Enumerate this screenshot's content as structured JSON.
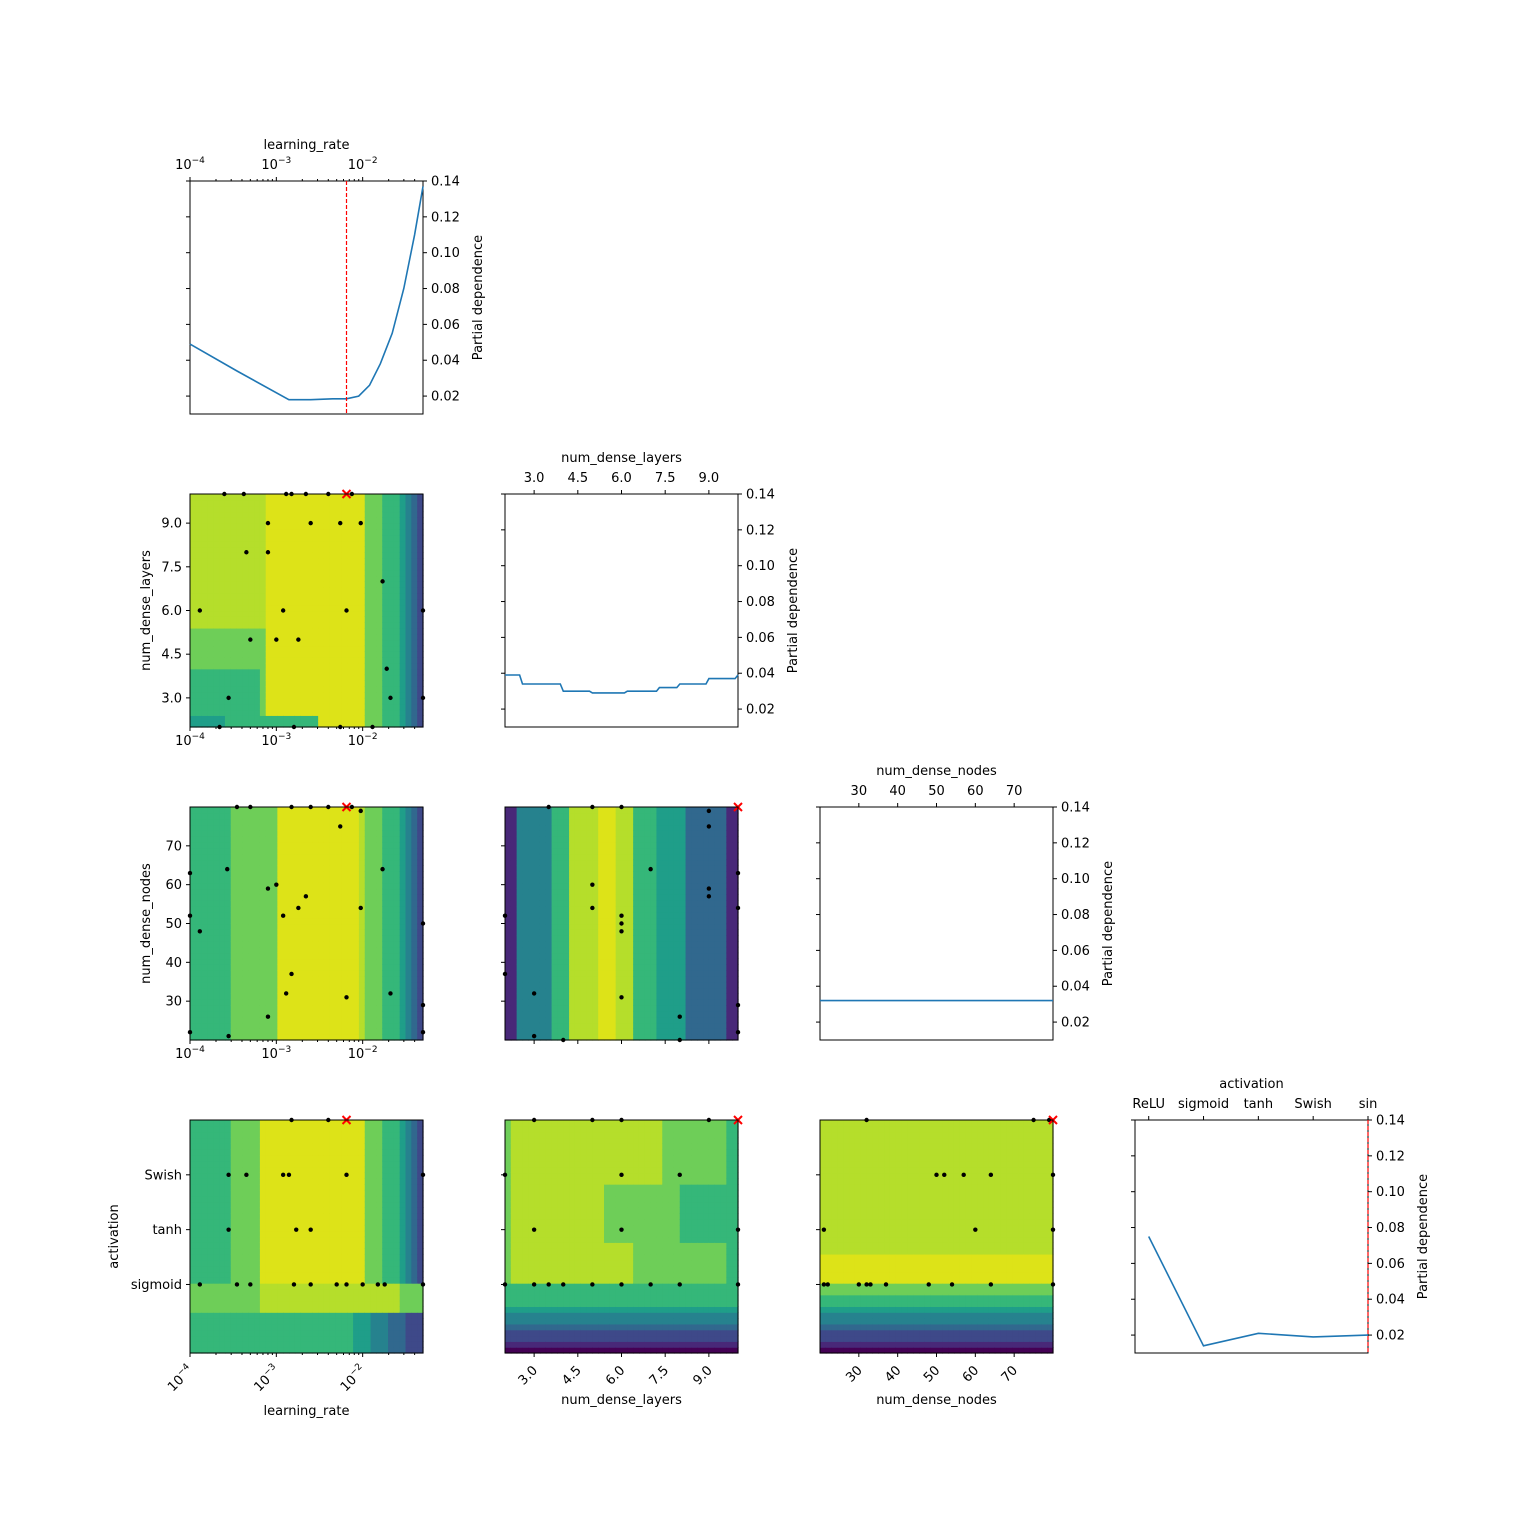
{
  "chart_data": {
    "type": "partial_dependence_matrix",
    "title": "",
    "dimensions": [
      {
        "key": "learning_rate",
        "label": "learning_rate",
        "scale": "log",
        "range": [
          0.0001,
          0.05
        ],
        "ticks": [
          {
            "v": 0.0001,
            "label": "10",
            "exp": "−4"
          },
          {
            "v": 0.001,
            "label": "10",
            "exp": "−3"
          },
          {
            "v": 0.01,
            "label": "10",
            "exp": "−2"
          }
        ]
      },
      {
        "key": "num_dense_layers",
        "label": "num_dense_layers",
        "scale": "linear",
        "range": [
          2,
          10
        ],
        "ticks": [
          {
            "v": 3,
            "label": "3.0"
          },
          {
            "v": 4.5,
            "label": "4.5"
          },
          {
            "v": 6,
            "label": "6.0"
          },
          {
            "v": 7.5,
            "label": "7.5"
          },
          {
            "v": 9,
            "label": "9.0"
          }
        ]
      },
      {
        "key": "num_dense_nodes",
        "label": "num_dense_nodes",
        "scale": "linear",
        "range": [
          20,
          80
        ],
        "ticks": [
          {
            "v": 30,
            "label": "30"
          },
          {
            "v": 40,
            "label": "40"
          },
          {
            "v": 50,
            "label": "50"
          },
          {
            "v": 60,
            "label": "60"
          },
          {
            "v": 70,
            "label": "70"
          }
        ]
      },
      {
        "key": "activation",
        "label": "activation",
        "scale": "categorical",
        "range": [
          -0.5,
          3.75
        ],
        "ticks": [
          {
            "v": -0.25,
            "label": "ReLU"
          },
          {
            "v": 0.75,
            "label": "sigmoid"
          },
          {
            "v": 1.75,
            "label": "tanh"
          },
          {
            "v": 2.75,
            "label": "Swish"
          },
          {
            "v": 3.75,
            "label": "sin"
          }
        ],
        "row_ticks": [
          {
            "v": 0.75,
            "label": "sigmoid"
          },
          {
            "v": 1.75,
            "label": "tanh"
          },
          {
            "v": 2.75,
            "label": "Swish"
          }
        ]
      }
    ],
    "pd_ylabel": "Partial dependence",
    "pd_ylim": [
      0.01,
      0.14
    ],
    "pd_yticks": [
      0.02,
      0.04,
      0.06,
      0.08,
      0.1,
      0.12,
      0.14
    ],
    "pd_ytick_labels": [
      "0.02",
      "0.04",
      "0.06",
      "0.08",
      "0.10",
      "0.12",
      "0.14"
    ],
    "line_color": "#1f77b4",
    "minimum_marker_color": "#ff0000",
    "sample_point_color": "#000000",
    "colormap": [
      "#440154",
      "#482878",
      "#3e4989",
      "#31688e",
      "#26828e",
      "#1f9e89",
      "#35b779",
      "#6ece58",
      "#b5de2b",
      "#dde318"
    ],
    "partial_dependence": [
      {
        "dimension": "learning_rate",
        "best": 0.0065,
        "x": [
          0.0001,
          0.00035,
          0.0014,
          0.0025,
          0.0045,
          0.0065,
          0.009,
          0.012,
          0.016,
          0.022,
          0.03,
          0.04,
          0.05
        ],
        "y": [
          0.049,
          0.034,
          0.018,
          0.018,
          0.0185,
          0.0185,
          0.02,
          0.026,
          0.038,
          0.055,
          0.08,
          0.11,
          0.137
        ]
      },
      {
        "dimension": "num_dense_layers",
        "best": null,
        "x": [
          2,
          2.5,
          2.6,
          3.9,
          4,
          4.9,
          5,
          6.1,
          6.2,
          7.2,
          7.3,
          7.9,
          8,
          8.9,
          9,
          9.9,
          10
        ],
        "y": [
          0.039,
          0.039,
          0.034,
          0.034,
          0.03,
          0.03,
          0.029,
          0.029,
          0.03,
          0.03,
          0.032,
          0.032,
          0.034,
          0.034,
          0.037,
          0.037,
          0.039
        ]
      },
      {
        "dimension": "num_dense_nodes",
        "best": null,
        "x": [
          20,
          80
        ],
        "y": [
          0.032,
          0.032
        ]
      },
      {
        "dimension": "activation",
        "best": 3.75,
        "x": [
          -0.25,
          0.75,
          1.75,
          2.75,
          3.75
        ],
        "y": [
          0.075,
          0.014,
          0.021,
          0.019,
          0.02
        ]
      }
    ],
    "contours": [
      {
        "row": "num_dense_layers",
        "col": "learning_rate",
        "best": [
          0.0065,
          10
        ],
        "points": [
          [
            0.00013,
            6
          ],
          [
            0.00022,
            2
          ],
          [
            0.00025,
            10
          ],
          [
            0.00028,
            3
          ],
          [
            0.00042,
            10
          ],
          [
            0.00045,
            8
          ],
          [
            0.0005,
            5
          ],
          [
            0.0008,
            9
          ],
          [
            0.0008,
            8
          ],
          [
            0.001,
            5
          ],
          [
            0.0012,
            6
          ],
          [
            0.0013,
            10
          ],
          [
            0.0015,
            10
          ],
          [
            0.0016,
            2
          ],
          [
            0.0018,
            5
          ],
          [
            0.0022,
            10
          ],
          [
            0.0025,
            9
          ],
          [
            0.004,
            10
          ],
          [
            0.0055,
            2
          ],
          [
            0.0055,
            9
          ],
          [
            0.0065,
            6
          ],
          [
            0.0075,
            10
          ],
          [
            0.0095,
            9
          ],
          [
            0.013,
            2
          ],
          [
            0.017,
            7
          ],
          [
            0.019,
            4
          ],
          [
            0.021,
            3
          ],
          [
            0.05,
            6
          ],
          [
            0.05,
            3
          ]
        ]
      },
      {
        "row": "num_dense_nodes",
        "col": "learning_rate",
        "best": [
          0.0065,
          80
        ],
        "points": [
          [
            0.0001,
            63
          ],
          [
            0.0001,
            52
          ],
          [
            0.0001,
            22
          ],
          [
            0.00013,
            48
          ],
          [
            0.00027,
            64
          ],
          [
            0.00028,
            21
          ],
          [
            0.00035,
            80
          ],
          [
            0.0005,
            80
          ],
          [
            0.0008,
            59
          ],
          [
            0.0008,
            26
          ],
          [
            0.001,
            60
          ],
          [
            0.0012,
            52
          ],
          [
            0.0013,
            32
          ],
          [
            0.0015,
            37
          ],
          [
            0.0015,
            80
          ],
          [
            0.0018,
            54
          ],
          [
            0.0022,
            57
          ],
          [
            0.0025,
            80
          ],
          [
            0.004,
            80
          ],
          [
            0.0055,
            75
          ],
          [
            0.0065,
            31
          ],
          [
            0.0075,
            80
          ],
          [
            0.0095,
            54
          ],
          [
            0.0095,
            79
          ],
          [
            0.017,
            64
          ],
          [
            0.021,
            32
          ],
          [
            0.05,
            50
          ],
          [
            0.05,
            29
          ],
          [
            0.05,
            22
          ]
        ]
      },
      {
        "row": "activation",
        "col": "learning_rate",
        "best": [
          0.0065,
          3.75
        ],
        "points": [
          [
            0.00013,
            0.75
          ],
          [
            0.00028,
            2.75
          ],
          [
            0.00028,
            1.75
          ],
          [
            0.00035,
            0.75
          ],
          [
            0.00045,
            2.75
          ],
          [
            0.0005,
            0.75
          ],
          [
            0.0012,
            2.75
          ],
          [
            0.0014,
            2.75
          ],
          [
            0.0017,
            1.75
          ],
          [
            0.0016,
            0.75
          ],
          [
            0.0015,
            3.75
          ],
          [
            0.0025,
            1.75
          ],
          [
            0.0025,
            0.75
          ],
          [
            0.004,
            3.75
          ],
          [
            0.005,
            0.75
          ],
          [
            0.0065,
            2.75
          ],
          [
            0.0065,
            0.75
          ],
          [
            0.01,
            0.75
          ],
          [
            0.015,
            0.75
          ],
          [
            0.018,
            0.75
          ],
          [
            0.05,
            2.75
          ],
          [
            0.05,
            0.75
          ]
        ]
      },
      {
        "row": "num_dense_nodes",
        "col": "num_dense_layers",
        "best": [
          10,
          80
        ],
        "points": [
          [
            2,
            52
          ],
          [
            2,
            37
          ],
          [
            3,
            32
          ],
          [
            3,
            21
          ],
          [
            3.5,
            80
          ],
          [
            4,
            20
          ],
          [
            5,
            60
          ],
          [
            5,
            54
          ],
          [
            5,
            80
          ],
          [
            6,
            52
          ],
          [
            6,
            50
          ],
          [
            6,
            48
          ],
          [
            6,
            31
          ],
          [
            6,
            80
          ],
          [
            7,
            64
          ],
          [
            8,
            26
          ],
          [
            8,
            20
          ],
          [
            9,
            79
          ],
          [
            9,
            75
          ],
          [
            9,
            59
          ],
          [
            9,
            57
          ],
          [
            10,
            63
          ],
          [
            10,
            54
          ],
          [
            10,
            29
          ],
          [
            10,
            22
          ]
        ]
      },
      {
        "row": "activation",
        "col": "num_dense_layers",
        "best": [
          10,
          3.75
        ],
        "points": [
          [
            2,
            2.75
          ],
          [
            2,
            0.75
          ],
          [
            3,
            1.75
          ],
          [
            3,
            0.75
          ],
          [
            3,
            3.75
          ],
          [
            3.5,
            0.75
          ],
          [
            4,
            0.75
          ],
          [
            5,
            0.75
          ],
          [
            5,
            3.75
          ],
          [
            6,
            2.75
          ],
          [
            6,
            1.75
          ],
          [
            6,
            0.75
          ],
          [
            6,
            3.75
          ],
          [
            7,
            0.75
          ],
          [
            8,
            2.75
          ],
          [
            8,
            0.75
          ],
          [
            9,
            3.75
          ],
          [
            10,
            1.75
          ],
          [
            10,
            0.75
          ]
        ]
      },
      {
        "row": "activation",
        "col": "num_dense_nodes",
        "best": [
          80,
          3.75
        ],
        "points": [
          [
            21,
            1.75
          ],
          [
            21,
            0.75
          ],
          [
            22,
            0.75
          ],
          [
            30,
            0.75
          ],
          [
            32,
            0.75
          ],
          [
            33,
            0.75
          ],
          [
            32,
            3.75
          ],
          [
            37,
            0.75
          ],
          [
            48,
            0.75
          ],
          [
            50,
            2.75
          ],
          [
            52,
            2.75
          ],
          [
            54,
            0.75
          ],
          [
            57,
            2.75
          ],
          [
            60,
            1.75
          ],
          [
            64,
            2.75
          ],
          [
            64,
            0.75
          ],
          [
            75,
            3.75
          ],
          [
            80,
            2.75
          ],
          [
            80,
            1.75
          ],
          [
            80,
            0.75
          ],
          [
            79,
            3.75
          ]
        ]
      }
    ]
  }
}
